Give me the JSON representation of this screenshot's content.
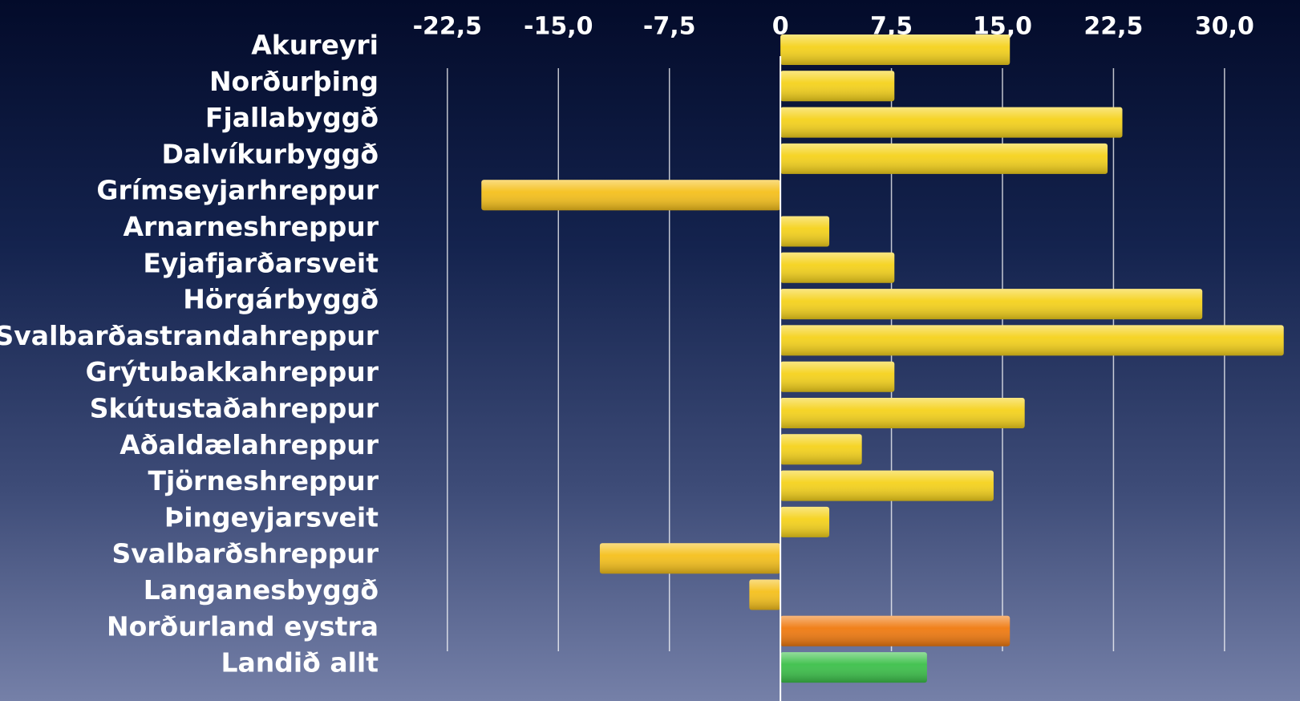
{
  "chart_data": {
    "type": "bar",
    "orientation": "horizontal",
    "categories": [
      "Akureyri",
      "Norðurþing",
      "Fjallabyggð",
      "Dalvíkurbyggð",
      "Grímseyjarhreppur",
      "Arnarneshreppur",
      "Eyjafjarðarsveit",
      "Hörgárbyggð",
      "Svalbarðastrandahreppur",
      "Grýtubakkahreppur",
      "Skútustaðahreppur",
      "Aðaldælahreppur",
      "Tjörneshreppur",
      "Þingeyjarsveit",
      "Svalbarðshreppur",
      "Langanesbyggð",
      "Norðurland eystra",
      "Landið allt"
    ],
    "values": [
      15.5,
      7.7,
      23.1,
      22.1,
      -20.2,
      3.3,
      7.7,
      28.5,
      34,
      7.7,
      16.5,
      5.5,
      14.4,
      3.3,
      -12.2,
      -2.1,
      15.5,
      9.9
    ],
    "colors": [
      "#f5d21c",
      "#f5d21c",
      "#f5d21c",
      "#f5d21c",
      "#f5c01c",
      "#f5d21c",
      "#f5d21c",
      "#f5d21c",
      "#f5d21c",
      "#f5d21c",
      "#f5d21c",
      "#f5d21c",
      "#f5d21c",
      "#f5d21c",
      "#f5c01c",
      "#f5c01c",
      "#f07a10",
      "#3cc04a"
    ],
    "xlim": [
      -26.5,
      35.1
    ],
    "xticks": [
      {
        "value": -22.5,
        "label": "-22,5"
      },
      {
        "value": -15,
        "label": "-15,0"
      },
      {
        "value": -7.5,
        "label": "-7,5"
      },
      0,
      {
        "value": 7.5,
        "label": "7,5"
      },
      {
        "value": 15,
        "label": "15,0"
      },
      {
        "value": 22.5,
        "label": "22,5"
      },
      {
        "value": 30,
        "label": "30,0"
      }
    ],
    "grid": true
  }
}
